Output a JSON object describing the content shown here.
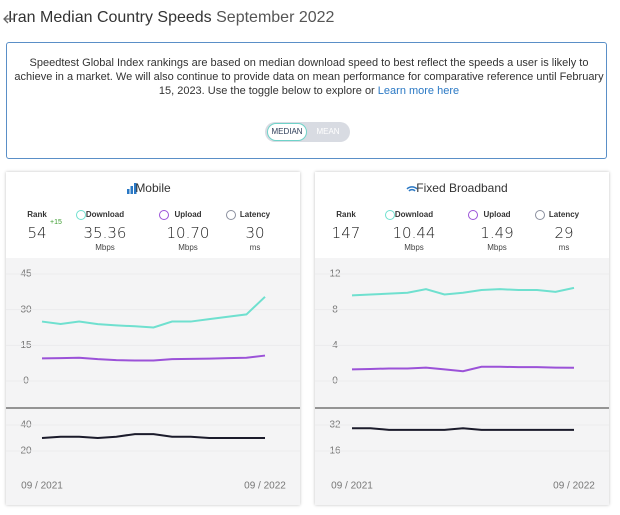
{
  "header": {
    "title": "Iran Median Country Speeds",
    "date": "September 2022"
  },
  "notice": {
    "text": "Speedtest Global Index rankings are based on median download speed to best reflect the speeds a user is likely to achieve in a market. We will also continue to provide data on mean performance for comparative reference until February 15, 2023. Use the toggle below to explore or",
    "link": "Learn more here",
    "toggle": [
      "MEDIAN",
      "MEAN"
    ]
  },
  "panels": [
    {
      "title": "Mobile",
      "stats": [
        {
          "label": "Rank",
          "value": "54",
          "change": "+15"
        },
        {
          "label": "Download",
          "value": "35.36",
          "unit": "Mbps"
        },
        {
          "label": "Upload",
          "value": "10.70",
          "unit": "Mbps"
        },
        {
          "label": "Latency",
          "value": "30",
          "unit": "ms"
        }
      ]
    },
    {
      "title": "Fixed Broadband",
      "stats": [
        {
          "label": "Rank",
          "value": "147"
        },
        {
          "label": "Download",
          "value": "10.44",
          "unit": "Mbps"
        },
        {
          "label": "Upload",
          "value": "1.49",
          "unit": "Mbps"
        },
        {
          "label": "Latency",
          "value": "29",
          "unit": "ms"
        }
      ]
    }
  ],
  "chart_data": [
    {
      "type": "line",
      "ylim": [
        0,
        45
      ],
      "yticks": [
        0,
        15,
        30,
        45
      ],
      "grid": true,
      "series": [
        {
          "color": "#6fe0cf",
          "values": [
            25,
            24,
            25,
            23.9,
            23.4,
            23,
            22.5,
            25,
            25,
            26,
            27,
            28,
            35.4
          ]
        },
        {
          "color": "#9b52d8",
          "values": [
            9.5,
            9.6,
            9.8,
            9.2,
            8.8,
            8.6,
            8.6,
            9.2,
            9.3,
            9.4,
            9.6,
            9.8,
            10.7
          ]
        }
      ]
    },
    {
      "type": "line",
      "ylim": [
        0,
        50
      ],
      "yticks": [
        20,
        40
      ],
      "grid": true,
      "categories": [
        "09 / 2021",
        null,
        null,
        null,
        null,
        null,
        null,
        null,
        null,
        null,
        null,
        null,
        "09 / 2022"
      ],
      "series": [
        {
          "color": "#1b1b2b",
          "values": [
            30,
            31,
            31,
            30,
            31,
            33,
            33,
            31,
            31,
            30,
            30,
            30,
            30
          ]
        }
      ]
    },
    {
      "type": "line",
      "ylim": [
        0,
        12
      ],
      "yticks": [
        0,
        4,
        8,
        12
      ],
      "grid": true,
      "series": [
        {
          "color": "#6fe0cf",
          "values": [
            9.6,
            9.7,
            9.8,
            9.9,
            10.3,
            9.7,
            9.9,
            10.2,
            10.3,
            10.2,
            10.2,
            10.0,
            10.44
          ]
        },
        {
          "color": "#9b52d8",
          "values": [
            1.3,
            1.35,
            1.4,
            1.4,
            1.5,
            1.3,
            1.1,
            1.6,
            1.6,
            1.55,
            1.55,
            1.5,
            1.49
          ]
        }
      ]
    },
    {
      "type": "line",
      "ylim": [
        0,
        40
      ],
      "yticks": [
        16,
        32
      ],
      "grid": true,
      "categories": [
        "09 / 2021",
        null,
        null,
        null,
        null,
        null,
        null,
        null,
        null,
        null,
        null,
        null,
        "09 / 2022"
      ],
      "series": [
        {
          "color": "#1b1b2b",
          "values": [
            30,
            30,
            29,
            29,
            29,
            29,
            30,
            29,
            29,
            29,
            29,
            29,
            29
          ]
        }
      ]
    }
  ]
}
